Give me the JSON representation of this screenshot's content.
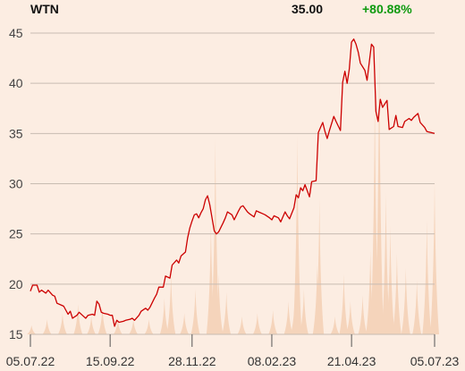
{
  "header": {
    "ticker": "WTN",
    "price": "35.00",
    "change": "+80.88%",
    "change_color": "#0f9a0f"
  },
  "colors": {
    "line": "#cc0000",
    "volume": "#f5d4bb",
    "grid": "#c8bcb2",
    "background": "#fcede2"
  },
  "chart_data": {
    "type": "line",
    "title": "WTN",
    "xlabel": "",
    "ylabel": "",
    "ylim": [
      15,
      45
    ],
    "yticks": [
      "15",
      "20",
      "25",
      "30",
      "35",
      "40",
      "45"
    ],
    "xticks": [
      {
        "date": "2022-07-05",
        "label": "05.07.22"
      },
      {
        "date": "2022-09-15",
        "label": "15.09.22"
      },
      {
        "date": "2022-11-28",
        "label": "28.11.22"
      },
      {
        "date": "2023-02-08",
        "label": "08.02.23"
      },
      {
        "date": "2023-04-21",
        "label": "21.04.23"
      },
      {
        "date": "2023-07-05",
        "label": "05.07.23"
      }
    ],
    "grid": true,
    "series": [
      {
        "points": [
          [
            "2022-07-05",
            19.3
          ],
          [
            "2022-07-07",
            19.9
          ],
          [
            "2022-07-11",
            19.9
          ],
          [
            "2022-07-13",
            19.2
          ],
          [
            "2022-07-15",
            19.4
          ],
          [
            "2022-07-19",
            19.1
          ],
          [
            "2022-07-21",
            19.4
          ],
          [
            "2022-07-25",
            18.9
          ],
          [
            "2022-07-27",
            18.8
          ],
          [
            "2022-07-29",
            18.1
          ],
          [
            "2022-08-02",
            17.9
          ],
          [
            "2022-08-04",
            17.8
          ],
          [
            "2022-08-08",
            17.0
          ],
          [
            "2022-08-10",
            17.3
          ],
          [
            "2022-08-12",
            16.6
          ],
          [
            "2022-08-16",
            16.9
          ],
          [
            "2022-08-18",
            17.2
          ],
          [
            "2022-08-22",
            16.8
          ],
          [
            "2022-08-24",
            16.6
          ],
          [
            "2022-08-26",
            16.9
          ],
          [
            "2022-08-30",
            17.0
          ],
          [
            "2022-09-01",
            16.9
          ],
          [
            "2022-09-03",
            18.3
          ],
          [
            "2022-09-05",
            18.0
          ],
          [
            "2022-09-07",
            17.2
          ],
          [
            "2022-09-09",
            17.1
          ],
          [
            "2022-09-13",
            17.0
          ],
          [
            "2022-09-15",
            16.9
          ],
          [
            "2022-09-17",
            16.9
          ],
          [
            "2022-09-19",
            15.8
          ],
          [
            "2022-09-21",
            16.4
          ],
          [
            "2022-09-23",
            16.2
          ],
          [
            "2022-09-27",
            16.3
          ],
          [
            "2022-09-29",
            16.4
          ],
          [
            "2022-10-03",
            16.5
          ],
          [
            "2022-10-05",
            16.6
          ],
          [
            "2022-10-07",
            16.4
          ],
          [
            "2022-10-11",
            16.9
          ],
          [
            "2022-10-13",
            17.3
          ],
          [
            "2022-10-17",
            17.6
          ],
          [
            "2022-10-19",
            17.4
          ],
          [
            "2022-10-21",
            17.7
          ],
          [
            "2022-10-25",
            18.6
          ],
          [
            "2022-10-27",
            19.0
          ],
          [
            "2022-10-29",
            19.7
          ],
          [
            "2022-11-02",
            19.7
          ],
          [
            "2022-11-04",
            20.8
          ],
          [
            "2022-11-08",
            20.6
          ],
          [
            "2022-11-10",
            21.9
          ],
          [
            "2022-11-14",
            22.4
          ],
          [
            "2022-11-16",
            22.1
          ],
          [
            "2022-11-18",
            22.8
          ],
          [
            "2022-11-22",
            23.2
          ],
          [
            "2022-11-24",
            24.6
          ],
          [
            "2022-11-26",
            25.6
          ],
          [
            "2022-11-28",
            26.3
          ],
          [
            "2022-11-30",
            26.9
          ],
          [
            "2022-12-02",
            27.0
          ],
          [
            "2022-12-04",
            26.6
          ],
          [
            "2022-12-06",
            27.1
          ],
          [
            "2022-12-08",
            27.5
          ],
          [
            "2022-12-10",
            28.4
          ],
          [
            "2022-12-12",
            28.8
          ],
          [
            "2022-12-14",
            27.9
          ],
          [
            "2022-12-16",
            26.6
          ],
          [
            "2022-12-18",
            25.3
          ],
          [
            "2022-12-20",
            25.0
          ],
          [
            "2022-12-22",
            25.2
          ],
          [
            "2022-12-26",
            26.1
          ],
          [
            "2022-12-28",
            26.6
          ],
          [
            "2022-12-30",
            27.2
          ],
          [
            "2023-01-03",
            26.9
          ],
          [
            "2023-01-05",
            26.4
          ],
          [
            "2023-01-09",
            27.3
          ],
          [
            "2023-01-11",
            27.7
          ],
          [
            "2023-01-13",
            27.8
          ],
          [
            "2023-01-17",
            27.2
          ],
          [
            "2023-01-19",
            27.0
          ],
          [
            "2023-01-23",
            26.7
          ],
          [
            "2023-01-25",
            27.3
          ],
          [
            "2023-01-27",
            27.2
          ],
          [
            "2023-01-31",
            27.0
          ],
          [
            "2023-02-02",
            26.9
          ],
          [
            "2023-02-06",
            26.6
          ],
          [
            "2023-02-08",
            26.4
          ],
          [
            "2023-02-10",
            26.8
          ],
          [
            "2023-02-14",
            26.6
          ],
          [
            "2023-02-16",
            26.2
          ],
          [
            "2023-02-20",
            27.2
          ],
          [
            "2023-02-22",
            26.8
          ],
          [
            "2023-02-24",
            26.5
          ],
          [
            "2023-02-28",
            27.6
          ],
          [
            "2023-03-02",
            28.9
          ],
          [
            "2023-03-04",
            28.6
          ],
          [
            "2023-03-06",
            29.6
          ],
          [
            "2023-03-08",
            29.3
          ],
          [
            "2023-03-10",
            29.9
          ],
          [
            "2023-03-14",
            28.7
          ],
          [
            "2023-03-16",
            30.2
          ],
          [
            "2023-03-20",
            30.3
          ],
          [
            "2023-03-22",
            35.1
          ],
          [
            "2023-03-24",
            35.6
          ],
          [
            "2023-03-26",
            36.1
          ],
          [
            "2023-03-28",
            35.2
          ],
          [
            "2023-03-30",
            34.5
          ],
          [
            "2023-04-01",
            35.3
          ],
          [
            "2023-04-05",
            36.7
          ],
          [
            "2023-04-07",
            36.2
          ],
          [
            "2023-04-11",
            35.3
          ],
          [
            "2023-04-13",
            40.1
          ],
          [
            "2023-04-15",
            41.2
          ],
          [
            "2023-04-17",
            40.0
          ],
          [
            "2023-04-19",
            41.4
          ],
          [
            "2023-04-21",
            44.1
          ],
          [
            "2023-04-23",
            44.4
          ],
          [
            "2023-04-25",
            43.9
          ],
          [
            "2023-04-27",
            43.1
          ],
          [
            "2023-04-29",
            42.0
          ],
          [
            "2023-05-03",
            41.3
          ],
          [
            "2023-05-05",
            40.3
          ],
          [
            "2023-05-09",
            43.9
          ],
          [
            "2023-05-11",
            43.6
          ],
          [
            "2023-05-13",
            37.2
          ],
          [
            "2023-05-15",
            36.2
          ],
          [
            "2023-05-17",
            38.4
          ],
          [
            "2023-05-19",
            37.6
          ],
          [
            "2023-05-23",
            38.3
          ],
          [
            "2023-05-25",
            35.4
          ],
          [
            "2023-05-29",
            35.7
          ],
          [
            "2023-05-31",
            36.8
          ],
          [
            "2023-06-02",
            35.7
          ],
          [
            "2023-06-06",
            35.6
          ],
          [
            "2023-06-08",
            36.2
          ],
          [
            "2023-06-12",
            36.5
          ],
          [
            "2023-06-14",
            36.3
          ],
          [
            "2023-06-16",
            36.6
          ],
          [
            "2023-06-20",
            37.0
          ],
          [
            "2023-06-22",
            36.1
          ],
          [
            "2023-06-26",
            35.6
          ],
          [
            "2023-06-28",
            35.2
          ],
          [
            "2023-07-05",
            35.0
          ]
        ]
      }
    ],
    "volume": {
      "note_units": "relative",
      "bars": [
        [
          "2022-07-06",
          0.03
        ],
        [
          "2022-07-20",
          0.05
        ],
        [
          "2022-08-03",
          0.07
        ],
        [
          "2022-08-17",
          0.1
        ],
        [
          "2022-08-29",
          0.06
        ],
        [
          "2022-09-08",
          0.09
        ],
        [
          "2022-09-22",
          0.05
        ],
        [
          "2022-10-06",
          0.05
        ],
        [
          "2022-10-20",
          0.05
        ],
        [
          "2022-11-03",
          0.12
        ],
        [
          "2022-11-09",
          0.2
        ],
        [
          "2022-11-21",
          0.07
        ],
        [
          "2022-12-01",
          0.15
        ],
        [
          "2022-12-15",
          0.37
        ],
        [
          "2022-12-19",
          0.65
        ],
        [
          "2022-12-22",
          0.2
        ],
        [
          "2022-12-29",
          0.14
        ],
        [
          "2023-01-12",
          0.06
        ],
        [
          "2023-01-26",
          0.07
        ],
        [
          "2023-02-09",
          0.08
        ],
        [
          "2023-02-23",
          0.11
        ],
        [
          "2023-03-01",
          0.14
        ],
        [
          "2023-03-03",
          0.66
        ],
        [
          "2023-03-09",
          0.15
        ],
        [
          "2023-03-21",
          0.23
        ],
        [
          "2023-03-23",
          0.45
        ],
        [
          "2023-04-06",
          0.06
        ],
        [
          "2023-04-14",
          0.2
        ],
        [
          "2023-04-20",
          0.11
        ],
        [
          "2023-05-01",
          0.13
        ],
        [
          "2023-05-08",
          0.28
        ],
        [
          "2023-05-12",
          0.82
        ],
        [
          "2023-05-16",
          0.98
        ],
        [
          "2023-05-22",
          0.47
        ],
        [
          "2023-05-26",
          0.36
        ],
        [
          "2023-06-01",
          0.27
        ],
        [
          "2023-06-09",
          0.22
        ],
        [
          "2023-06-19",
          0.18
        ],
        [
          "2023-06-28",
          0.38
        ],
        [
          "2023-07-05",
          0.51
        ]
      ]
    }
  }
}
